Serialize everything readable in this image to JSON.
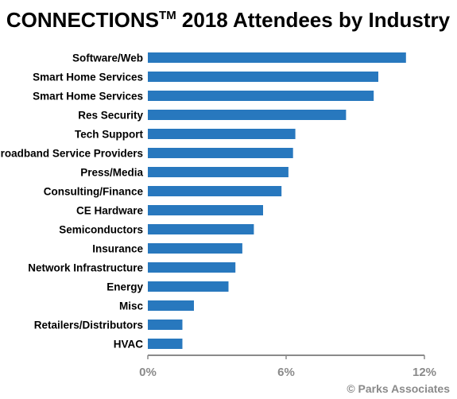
{
  "chart_data": {
    "type": "bar",
    "orientation": "horizontal",
    "title": "CONNECTIONS",
    "title_superscript": "TM",
    "title_suffix": " 2018 Attendees by Industry",
    "xlabel": "",
    "ylabel": "",
    "categories": [
      "Software/Web",
      "Smart Home Services",
      "Smart Home Services",
      "Res Security",
      "Tech Support",
      "Broadband Service Providers",
      "Press/Media",
      "Consulting/Finance",
      "CE Hardware",
      "Semiconductors",
      "Insurance",
      "Network Infrastructure",
      "Energy",
      "Misc",
      "Retailers/Distributors",
      "HVAC"
    ],
    "values": [
      11.2,
      10.0,
      9.8,
      8.6,
      6.4,
      6.3,
      6.1,
      5.8,
      5.0,
      4.6,
      4.1,
      3.8,
      3.5,
      2.0,
      1.5,
      1.5
    ],
    "xlim": [
      0,
      12
    ],
    "ticks": [
      0,
      6,
      12
    ],
    "tick_labels": [
      "0%",
      "6%",
      "12%"
    ],
    "bar_color": "#2878be",
    "axis_color": "#8a8a8a",
    "grid": false,
    "legend": "none"
  },
  "credit": "© Parks Associates"
}
